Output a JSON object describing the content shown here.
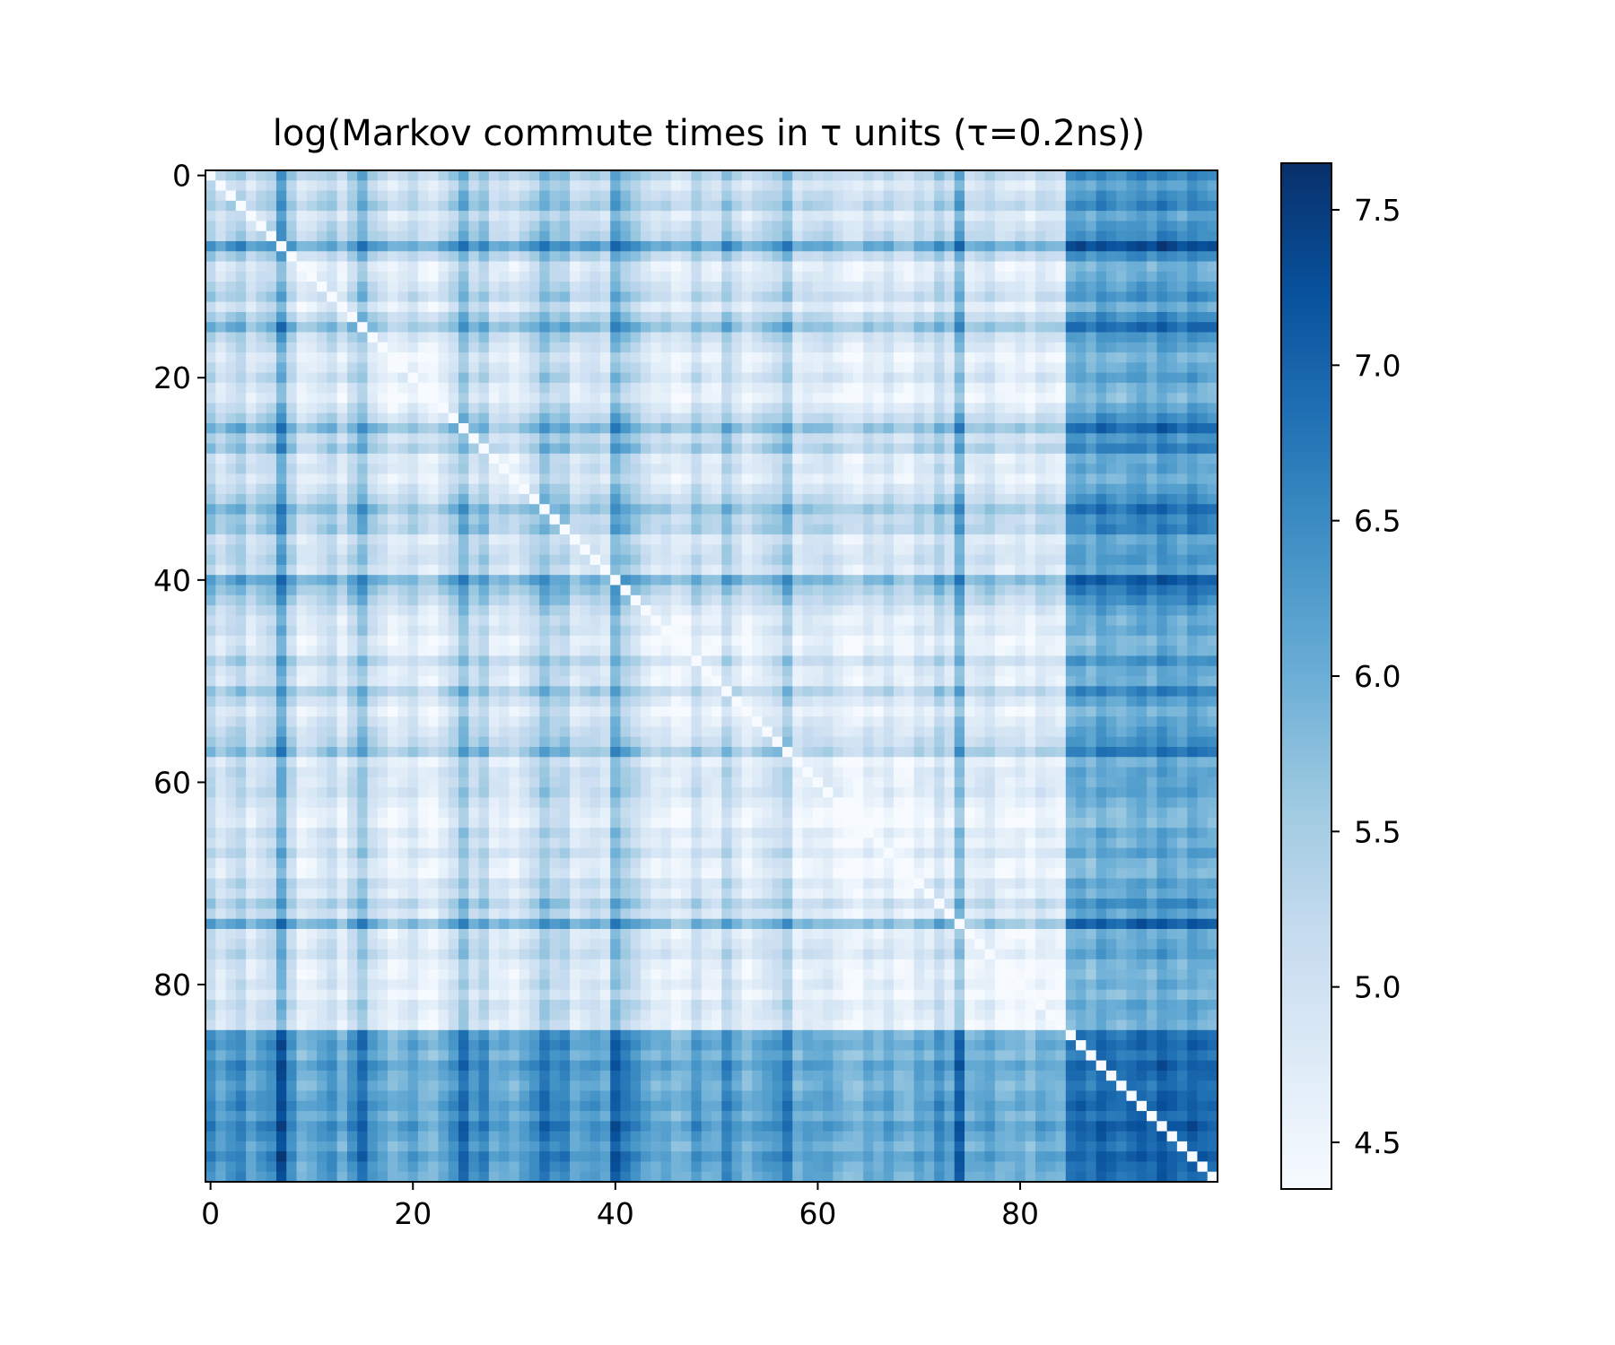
{
  "chart_data": {
    "type": "heatmap",
    "title": "log(Markov commute times in τ units (τ=0.2ns))",
    "xlabel": "",
    "ylabel": "",
    "n": 100,
    "x_ticks": [
      0,
      20,
      40,
      60,
      80
    ],
    "y_ticks": [
      0,
      20,
      40,
      60,
      80
    ],
    "colormap": "Blues",
    "colorbar": {
      "range": [
        4.35,
        7.65
      ],
      "ticks": [
        4.5,
        5.0,
        5.5,
        6.0,
        6.5,
        7.0,
        7.5
      ]
    },
    "cluster_boundaries": [
      0,
      7,
      15,
      25,
      33,
      41,
      57,
      74,
      85,
      100
    ],
    "state_offsets": [
      0.25,
      -0.15,
      0.1,
      0.3,
      -0.2,
      0.05,
      0.2,
      1.0,
      0.15,
      -0.4,
      -0.3,
      -0.1,
      0.1,
      -0.35,
      0.15,
      0.6,
      0.0,
      -0.2,
      -0.45,
      -0.3,
      -0.1,
      -0.4,
      -0.5,
      -0.2,
      0.1,
      0.6,
      0.0,
      0.3,
      -0.3,
      -0.2,
      -0.4,
      -0.15,
      0.1,
      0.55,
      0.2,
      0.3,
      -0.25,
      -0.1,
      0.0,
      -0.2,
      0.8,
      0.45,
      0.2,
      -0.1,
      -0.3,
      -0.2,
      -0.45,
      -0.35,
      0.1,
      -0.25,
      -0.3,
      0.3,
      -0.1,
      -0.4,
      -0.2,
      -0.05,
      0.1,
      0.45,
      -0.35,
      -0.15,
      -0.2,
      -0.1,
      -0.3,
      -0.45,
      -0.5,
      -0.2,
      -0.35,
      -0.1,
      -0.4,
      -0.45,
      -0.1,
      -0.25,
      0.2,
      -0.15,
      0.75,
      -0.35,
      -0.25,
      -0.1,
      -0.4,
      -0.45,
      -0.3,
      -0.5,
      -0.2,
      -0.3,
      -0.4,
      0.3,
      0.4,
      0.2,
      0.5,
      0.35,
      0.25,
      0.4,
      0.5,
      0.3,
      0.6,
      0.45,
      0.3,
      0.55,
      0.4,
      0.35
    ],
    "base_value": 5.25,
    "diagonal_value": 4.35
  }
}
